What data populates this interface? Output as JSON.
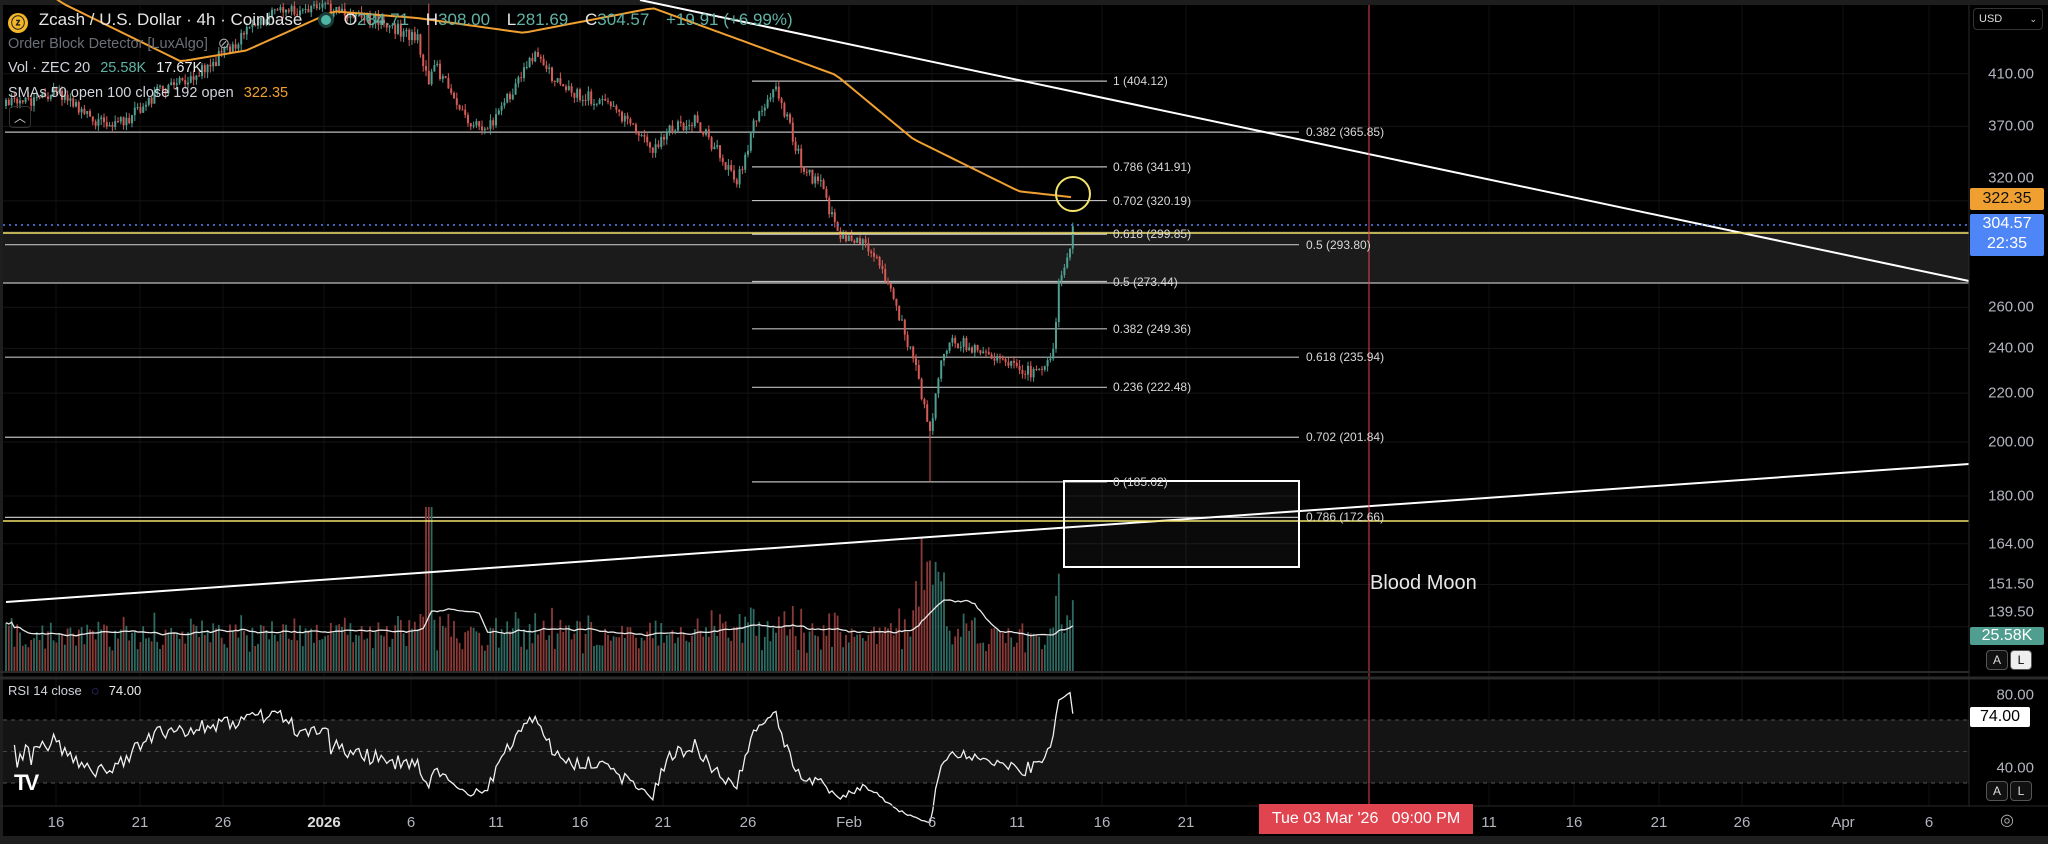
{
  "symbol": {
    "title": "Zcash / U.S. Dollar · 4h · Coinbase",
    "icon": "zcash-coin-icon",
    "ohlc": {
      "o_label": "O",
      "o": "284.71",
      "h_label": "H",
      "h": "308.00",
      "l_label": "L",
      "l": "281.69",
      "c_label": "C",
      "c": "304.57",
      "change": "+19.91 (+6.99%)"
    }
  },
  "indicators": {
    "order_block": "Order Block Detector [LuxAlgo]",
    "vol_label": "Vol · ZEC 20",
    "vol_value": "25.58K",
    "vol_ma": "17.67K",
    "sma_label": "SMAs 50 open 100 close 192 open",
    "sma_value": "322.35",
    "rsi_label": "RSI 14 close",
    "rsi_value": "74.00"
  },
  "currency": "USD",
  "price_axis": [
    "410.00",
    "370.00",
    "320.00",
    "260.00",
    "240.00",
    "220.00",
    "200.00",
    "180.00",
    "164.00",
    "151.50",
    "139.50"
  ],
  "price_axis_values": [
    410,
    370,
    320,
    260,
    240,
    220,
    200,
    180,
    164,
    151.5,
    139.5
  ],
  "tags": {
    "sma": "322.35",
    "last_price": "304.57",
    "countdown": "22:35",
    "volume": "25.58K",
    "rsi": "74.00",
    "rsi_80": "80.00",
    "rsi_40": "40.00"
  },
  "scale_buttons": {
    "auto": "A",
    "log": "L"
  },
  "fib_left": [
    {
      "label": "1 (404.12)",
      "price": 404.12
    },
    {
      "label": "0.786 (341.91)",
      "price": 341.91
    },
    {
      "label": "0.702 (320.19)",
      "price": 320.19
    },
    {
      "label": "0.618 (299.85)",
      "price": 299.85
    },
    {
      "label": "0.5 (273.44)",
      "price": 273.44
    },
    {
      "label": "0.382 (249.36)",
      "price": 249.36
    },
    {
      "label": "0.236 (222.48)",
      "price": 222.48
    },
    {
      "label": "0 (185.02)",
      "price": 185.02
    }
  ],
  "fib_right": [
    {
      "label": "0.382 (365.85)",
      "price": 365.85
    },
    {
      "label": "0.5 (293.80)",
      "price": 293.8
    },
    {
      "label": "0.618 (235.94)",
      "price": 235.94
    },
    {
      "label": "0.702 (201.84)",
      "price": 201.84
    },
    {
      "label": "0.786 (172.66)",
      "price": 172.66
    }
  ],
  "annotation": "Blood Moon",
  "time_axis": [
    "16",
    "21",
    "26",
    "2026",
    "6",
    "11",
    "16",
    "21",
    "26",
    "Feb",
    "6",
    "11",
    "16",
    "21",
    "11",
    "16",
    "21",
    "26",
    "Apr",
    "6"
  ],
  "crosshair_label": "Tue 03 Mar '26   09:00 PM",
  "colors": {
    "up": "#4f9e90",
    "down": "#d65a55",
    "sma": "#f0a030",
    "last": "#4f86f7",
    "crosshair": "#e0444f",
    "fib": "#c8c8c8",
    "yellow": "#f2e36b"
  },
  "chart_data": {
    "type": "candlestick",
    "x_unit": "days since Dec 13",
    "price_path": [
      [
        0,
        385
      ],
      [
        3,
        395
      ],
      [
        5,
        375
      ],
      [
        7,
        372
      ],
      [
        9,
        395
      ],
      [
        12,
        415
      ],
      [
        14,
        440
      ],
      [
        16,
        465
      ],
      [
        19,
        465
      ],
      [
        22,
        455
      ],
      [
        24.5,
        440
      ],
      [
        25.2,
        400
      ],
      [
        25.5,
        420
      ],
      [
        27,
        380
      ],
      [
        28.5,
        365
      ],
      [
        30,
        395
      ],
      [
        31.5,
        425
      ],
      [
        33,
        400
      ],
      [
        35,
        390
      ],
      [
        37,
        375
      ],
      [
        38.5,
        352
      ],
      [
        39.5,
        368
      ],
      [
        41,
        375
      ],
      [
        42.5,
        350
      ],
      [
        43.5,
        330
      ],
      [
        44.5,
        370
      ],
      [
        45.7,
        400
      ],
      [
        46.5,
        375
      ],
      [
        47.5,
        340
      ],
      [
        48.5,
        330
      ],
      [
        49.5,
        300
      ],
      [
        51,
        295
      ],
      [
        52,
        285
      ],
      [
        53,
        260
      ],
      [
        54,
        235
      ],
      [
        55,
        205
      ],
      [
        55.6,
        230
      ],
      [
        56.2,
        245
      ],
      [
        57.5,
        240
      ],
      [
        59,
        237
      ],
      [
        60.5,
        230
      ],
      [
        61.5,
        228
      ],
      [
        62.3,
        235
      ],
      [
        62.7,
        275
      ],
      [
        63.2,
        285
      ],
      [
        63.6,
        304.57
      ]
    ],
    "sma_path": [
      [
        -1,
        520
      ],
      [
        3.4,
        470
      ],
      [
        10.4,
        420
      ],
      [
        14.3,
        429
      ],
      [
        19.5,
        463
      ],
      [
        24.5,
        457
      ],
      [
        30.8,
        444
      ],
      [
        38.5,
        466
      ],
      [
        49.4,
        409
      ],
      [
        54,
        361
      ],
      [
        60.3,
        326
      ],
      [
        63.4,
        322.35
      ]
    ]
  }
}
